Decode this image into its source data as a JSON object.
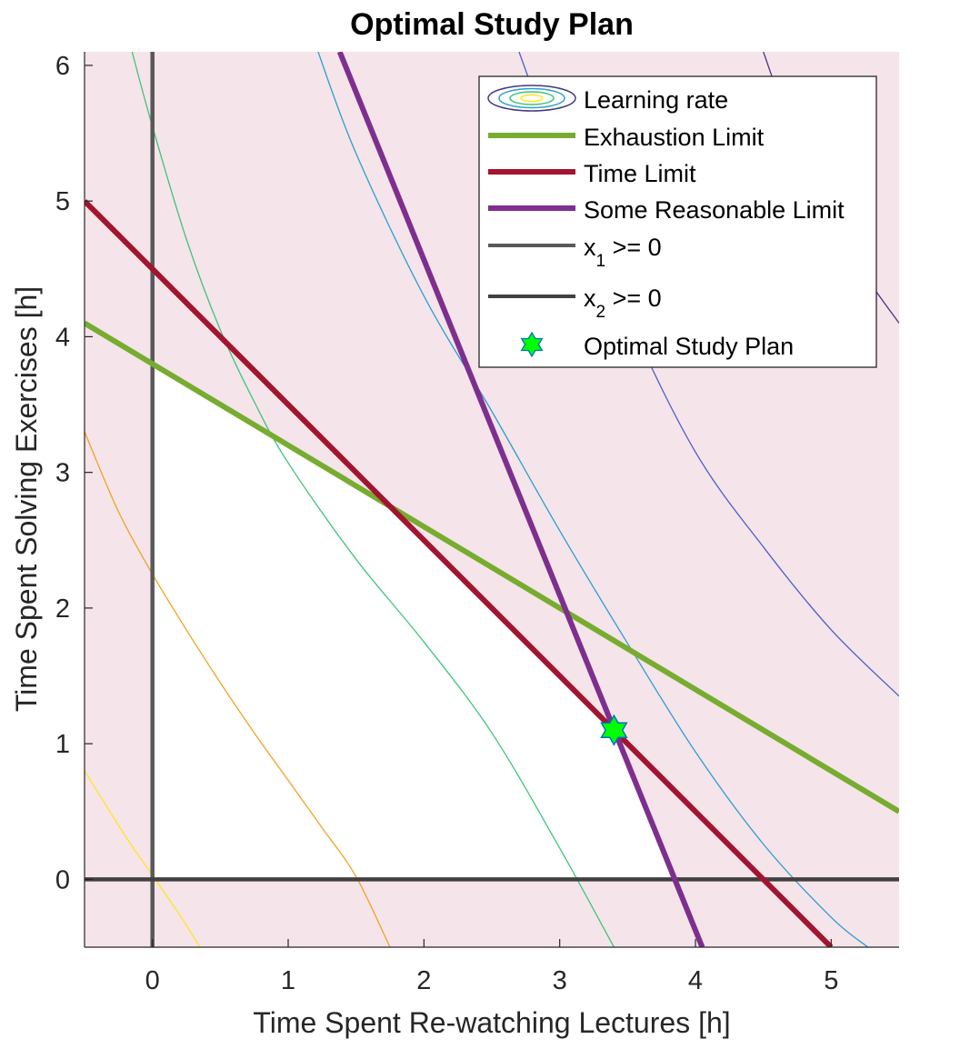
{
  "chart_data": {
    "type": "line",
    "title": "Optimal Study Plan",
    "xlabel": "Time Spent Re-watching Lectures [h]",
    "ylabel": "Time Spent Solving Exercises [h]",
    "xlim": [
      -0.5,
      5.5
    ],
    "ylim": [
      -0.5,
      6.1
    ],
    "xticks": [
      0,
      1,
      2,
      3,
      4,
      5
    ],
    "yticks": [
      0,
      1,
      2,
      3,
      4,
      5,
      6
    ],
    "grid": false,
    "legend_position": "top-right",
    "colors": {
      "infeasible_fill": "#f5e4e9",
      "exhaustion": "#77ac30",
      "time": "#a2142f",
      "reasonable": "#7e2f8e",
      "x1_axis": "#595959",
      "x2_axis": "#404040",
      "star_fill": "#00ff00",
      "star_edge": "#0072bd"
    },
    "contours": [
      {
        "color": "#fde725",
        "x": [
          -0.5,
          -0.2,
          0,
          0.2,
          0.35
        ],
        "y": [
          0.8,
          0.32,
          0.03,
          -0.26,
          -0.5
        ]
      },
      {
        "color": "#f0a422",
        "x": [
          -0.5,
          -0.25,
          0,
          0.25,
          0.5,
          0.75,
          1,
          1.25,
          1.5,
          1.75
        ],
        "y": [
          3.3,
          2.71,
          2.25,
          1.84,
          1.45,
          1.08,
          0.73,
          0.38,
          0.02,
          -0.5
        ]
      },
      {
        "color": "#3ec47b",
        "x": [
          -0.15,
          0,
          0.25,
          0.5,
          0.75,
          1,
          1.5,
          2,
          2.5,
          3,
          3.4
        ],
        "y": [
          6.1,
          5.55,
          4.72,
          4.05,
          3.52,
          3.07,
          2.36,
          1.75,
          1.08,
          0.23,
          -0.5
        ]
      },
      {
        "color": "#2c9fd0",
        "x": [
          1.22,
          1.5,
          2,
          2.5,
          3,
          3.5,
          4,
          4.5,
          5,
          5.27
        ],
        "y": [
          6.1,
          5.35,
          4.3,
          3.45,
          2.57,
          1.74,
          0.94,
          0.26,
          -0.28,
          -0.5
        ]
      },
      {
        "color": "#4a5fc9",
        "x": [
          2.7,
          3,
          3.5,
          4,
          4.5,
          5,
          5.5
        ],
        "y": [
          6.1,
          5.3,
          4.15,
          3.15,
          2.45,
          1.84,
          1.35
        ]
      },
      {
        "color": "#453781",
        "x": [
          4.5,
          4.75,
          5,
          5.25,
          5.5
        ],
        "y": [
          6.1,
          5.4,
          4.85,
          4.45,
          4.1
        ]
      }
    ],
    "series": [
      {
        "name": "Exhaustion Limit",
        "color": "#77ac30",
        "x": [
          -0.5,
          5.5
        ],
        "y": [
          4.1,
          0.5
        ]
      },
      {
        "name": "Time Limit",
        "color": "#a2142f",
        "x": [
          -0.5,
          5
        ],
        "y": [
          5,
          -0.5
        ]
      },
      {
        "name": "Some Reasonable Limit",
        "color": "#7e2f8e",
        "x": [
          1.38,
          4.05
        ],
        "y": [
          6.1,
          -0.5
        ]
      },
      {
        "name": "x1 >= 0",
        "color": "#595959",
        "x": [
          0,
          0
        ],
        "y": [
          -0.5,
          6.1
        ]
      },
      {
        "name": "x2 >= 0",
        "color": "#404040",
        "x": [
          -0.5,
          5.5
        ],
        "y": [
          0,
          0
        ]
      }
    ],
    "feasible_region": {
      "x": [
        0,
        0,
        0.85,
        1.75,
        3.39,
        3.83
      ],
      "y": [
        0,
        3.8,
        3.3,
        2.75,
        1.11,
        0
      ]
    },
    "optimum": {
      "name": "Optimal Study Plan",
      "x": 3.4,
      "y": 1.1
    },
    "legend": [
      {
        "kind": "contour",
        "label": "Learning rate",
        "sub": ""
      },
      {
        "kind": "line",
        "color": "#77ac30",
        "label": "Exhaustion Limit",
        "sub": ""
      },
      {
        "kind": "line",
        "color": "#a2142f",
        "label": "Time Limit",
        "sub": ""
      },
      {
        "kind": "line",
        "color": "#7e2f8e",
        "label": "Some Reasonable Limit",
        "sub": ""
      },
      {
        "kind": "line",
        "color": "#595959",
        "label": "x",
        "sub": "1",
        "rest": " >= 0"
      },
      {
        "kind": "line",
        "color": "#404040",
        "label": "x",
        "sub": "2",
        "rest": " >= 0"
      },
      {
        "kind": "star",
        "label": "Optimal Study Plan",
        "sub": ""
      }
    ]
  }
}
